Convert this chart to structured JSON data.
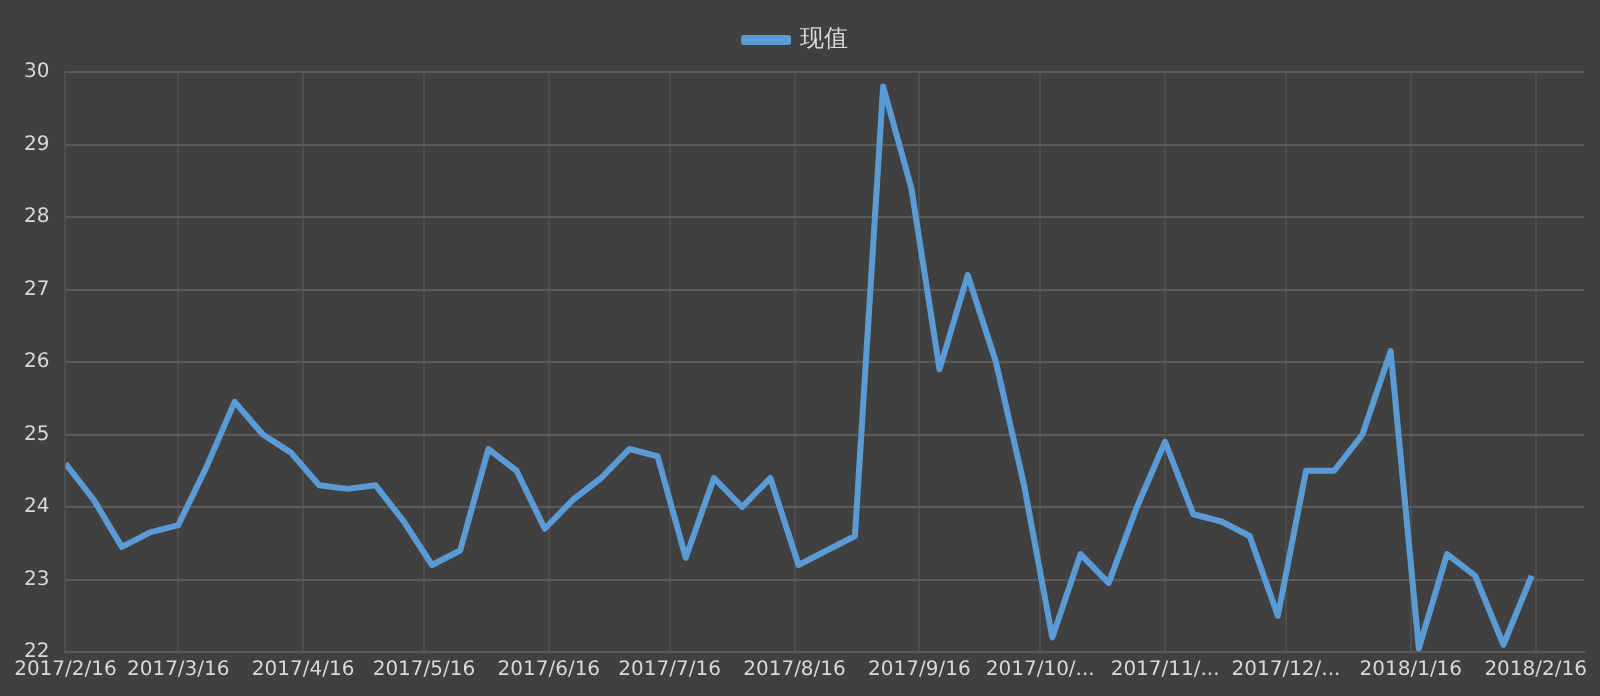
{
  "chart_data": {
    "type": "line",
    "x": [
      "2017-02-16",
      "2017-02-23",
      "2017-03-02",
      "2017-03-09",
      "2017-03-16",
      "2017-03-23",
      "2017-03-30",
      "2017-04-06",
      "2017-04-13",
      "2017-04-20",
      "2017-04-27",
      "2017-05-04",
      "2017-05-11",
      "2017-05-18",
      "2017-05-25",
      "2017-06-01",
      "2017-06-08",
      "2017-06-15",
      "2017-06-22",
      "2017-06-29",
      "2017-07-06",
      "2017-07-13",
      "2017-07-20",
      "2017-07-27",
      "2017-08-03",
      "2017-08-10",
      "2017-08-17",
      "2017-08-24",
      "2017-08-31",
      "2017-09-07",
      "2017-09-14",
      "2017-09-21",
      "2017-09-28",
      "2017-10-05",
      "2017-10-12",
      "2017-10-19",
      "2017-10-26",
      "2017-11-02",
      "2017-11-09",
      "2017-11-16",
      "2017-11-23",
      "2017-11-30",
      "2017-12-07",
      "2017-12-14",
      "2017-12-21",
      "2017-12-28",
      "2018-01-04",
      "2018-01-11",
      "2018-01-18",
      "2018-01-25",
      "2018-02-01",
      "2018-02-08",
      "2018-02-15"
    ],
    "series": [
      {
        "name": "现值",
        "color": "#5b9bd5",
        "values": [
          24.6,
          24.1,
          23.45,
          23.65,
          23.75,
          24.55,
          25.45,
          25.0,
          24.75,
          24.3,
          24.25,
          24.3,
          23.8,
          23.2,
          23.4,
          24.8,
          24.5,
          23.7,
          24.1,
          24.4,
          24.8,
          24.7,
          23.3,
          24.4,
          24.0,
          24.4,
          23.2,
          23.4,
          23.6,
          29.8,
          28.4,
          25.9,
          27.2,
          26.0,
          24.3,
          22.2,
          23.35,
          22.95,
          24.0,
          24.9,
          23.9,
          23.8,
          23.6,
          22.5,
          24.5,
          24.5,
          25.0,
          26.15,
          22.05,
          23.35,
          23.05,
          22.1,
          23.05
        ]
      }
    ],
    "xlim": [
      "2017-02-16",
      "2018-02-28"
    ],
    "xticks": [
      {
        "value": "2017-02-16",
        "label": "2017/2/16"
      },
      {
        "value": "2017-03-16",
        "label": "2017/3/16"
      },
      {
        "value": "2017-04-16",
        "label": "2017/4/16"
      },
      {
        "value": "2017-05-16",
        "label": "2017/5/16"
      },
      {
        "value": "2017-06-16",
        "label": "2017/6/16"
      },
      {
        "value": "2017-07-16",
        "label": "2017/7/16"
      },
      {
        "value": "2017-08-16",
        "label": "2017/8/16"
      },
      {
        "value": "2017-09-16",
        "label": "2017/9/16"
      },
      {
        "value": "2017-10-16",
        "label": "2017/10/..."
      },
      {
        "value": "2017-11-16",
        "label": "2017/11/..."
      },
      {
        "value": "2017-12-16",
        "label": "2017/12/..."
      },
      {
        "value": "2018-01-16",
        "label": "2018/1/16"
      },
      {
        "value": "2018-02-16",
        "label": "2018/2/16"
      }
    ],
    "ylim": [
      22,
      30
    ],
    "yticks": [
      22,
      23,
      24,
      25,
      26,
      27,
      28,
      29,
      30
    ],
    "grid": true,
    "legend": "top",
    "marker": "none",
    "line_style": "solid"
  }
}
